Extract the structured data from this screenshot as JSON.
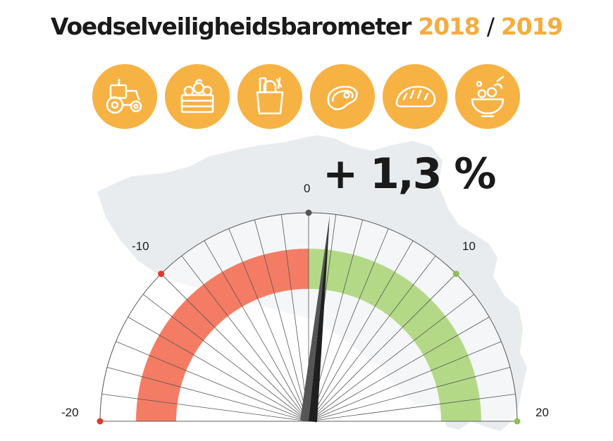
{
  "title": {
    "main": "Voedselveiligheidsbarometer",
    "year_start": "2018",
    "separator": "/",
    "year_end": "2019"
  },
  "icons": [
    {
      "name": "tractor-icon"
    },
    {
      "name": "vegetable-crate-icon"
    },
    {
      "name": "grocery-bag-icon"
    },
    {
      "name": "meat-steak-icon"
    },
    {
      "name": "bread-icon"
    },
    {
      "name": "salad-bowl-icon"
    }
  ],
  "gauge": {
    "value_label": "+ 1,3 %",
    "value": 1.3,
    "min": -20,
    "max": 20,
    "scale_labels": {
      "min": "-20",
      "minus10": "-10",
      "zero": "0",
      "plus10": "10",
      "max": "20"
    }
  },
  "colors": {
    "accent_orange": "#f7b244",
    "negative_red": "#f47c64",
    "positive_green": "#b3d987",
    "map_gray": "#e9ecef",
    "needle": "#3a3a3a"
  }
}
